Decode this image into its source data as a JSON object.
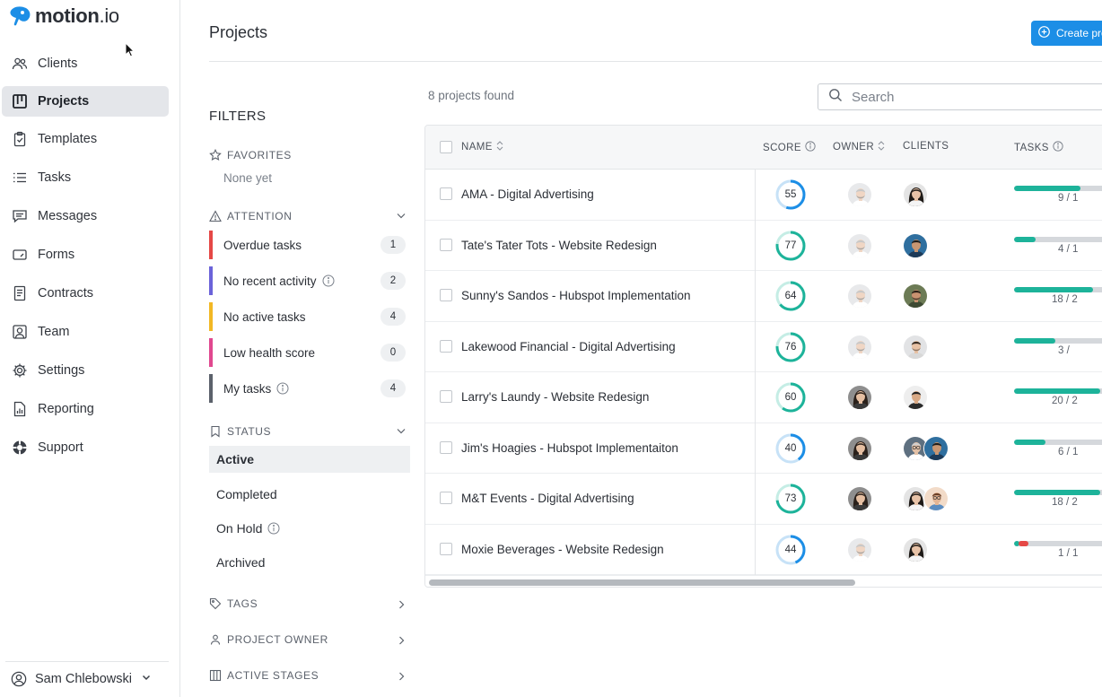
{
  "brand": {
    "name": "motion",
    "suffix": ".io",
    "accent": "#1c8ee6"
  },
  "sidebar": {
    "items": [
      {
        "label": "Clients",
        "icon": "users-icon"
      },
      {
        "label": "Projects",
        "icon": "kanban-icon",
        "active": true
      },
      {
        "label": "Templates",
        "icon": "clipboard-check-icon"
      },
      {
        "label": "Tasks",
        "icon": "list-icon"
      },
      {
        "label": "Messages",
        "icon": "chat-icon"
      },
      {
        "label": "Forms",
        "icon": "form-icon"
      },
      {
        "label": "Contracts",
        "icon": "document-icon"
      },
      {
        "label": "Team",
        "icon": "team-icon"
      },
      {
        "label": "Settings",
        "icon": "gear-icon"
      },
      {
        "label": "Reporting",
        "icon": "report-icon"
      },
      {
        "label": "Support",
        "icon": "lifebuoy-icon"
      }
    ],
    "user": "Sam Chlebowski"
  },
  "header": {
    "title": "Projects",
    "create_label": "Create project"
  },
  "filters": {
    "title": "FILTERS",
    "favorites": {
      "label": "FAVORITES",
      "empty": "None yet"
    },
    "attention": {
      "label": "ATTENTION",
      "items": [
        {
          "label": "Overdue tasks",
          "count": "1",
          "color": "#e54846"
        },
        {
          "label": "No recent activity",
          "count": "2",
          "color": "#6b63d9"
        },
        {
          "label": "No active tasks",
          "count": "4",
          "color": "#f2b824"
        },
        {
          "label": "Low health score",
          "count": "0",
          "color": "#e0488f"
        },
        {
          "label": "My tasks",
          "count": "4",
          "color": "#5b616b"
        }
      ]
    },
    "status": {
      "label": "STATUS",
      "items": [
        {
          "label": "Active",
          "active": true
        },
        {
          "label": "Completed"
        },
        {
          "label": "On Hold"
        },
        {
          "label": "Archived"
        }
      ]
    },
    "tags": "TAGS",
    "project_owner": "PROJECT OWNER",
    "active_stages": "ACTIVE STAGES"
  },
  "main": {
    "found": "8 projects found",
    "search_placeholder": "Search",
    "columns": {
      "name": "NAME",
      "score": "SCORE",
      "owner": "OWNER",
      "clients": "CLIENTS",
      "tasks": "TASKS"
    },
    "rows": [
      {
        "name": "AMA - Digital Advertising",
        "score": 55,
        "tasks_label": "9 / 1",
        "progress": 0.62,
        "owner": "man-a",
        "clients": [
          "woman-a"
        ]
      },
      {
        "name": "Tate's Tater Tots - Website Redesign",
        "score": 77,
        "tasks_label": "4 / 1",
        "progress": 0.2,
        "owner": "man-a",
        "clients": [
          "man-b"
        ]
      },
      {
        "name": "Sunny's Sandos - Hubspot Implementation",
        "score": 64,
        "tasks_label": "18 / 2",
        "progress": 0.73,
        "owner": "man-a",
        "clients": [
          "man-c"
        ]
      },
      {
        "name": "Lakewood Financial - Digital Advertising",
        "score": 76,
        "tasks_label": "3 / ",
        "progress": 0.38,
        "owner": "man-a",
        "clients": [
          "man-d"
        ]
      },
      {
        "name": "Larry's Laundy - Website Redesign",
        "score": 60,
        "tasks_label": "20 / 2",
        "progress": 0.8,
        "owner": "woman-b",
        "clients": [
          "man-e"
        ]
      },
      {
        "name": "Jim's Hoagies - Hubspot Implementaiton",
        "score": 40,
        "tasks_label": "6 / 1",
        "progress": 0.29,
        "owner": "woman-b",
        "clients": [
          "man-f",
          "man-b"
        ]
      },
      {
        "name": "M&T Events - Digital Advertising",
        "score": 73,
        "tasks_label": "18 / 2",
        "progress": 0.8,
        "owner": "woman-b",
        "clients": [
          "woman-a",
          "man-g"
        ]
      },
      {
        "name": "Moxie Beverages - Website Redesign",
        "score": 44,
        "tasks_label": "1 / 1",
        "progress": 0.05,
        "overdue": 0.09,
        "owner": "man-a",
        "clients": [
          "woman-a"
        ]
      }
    ]
  }
}
